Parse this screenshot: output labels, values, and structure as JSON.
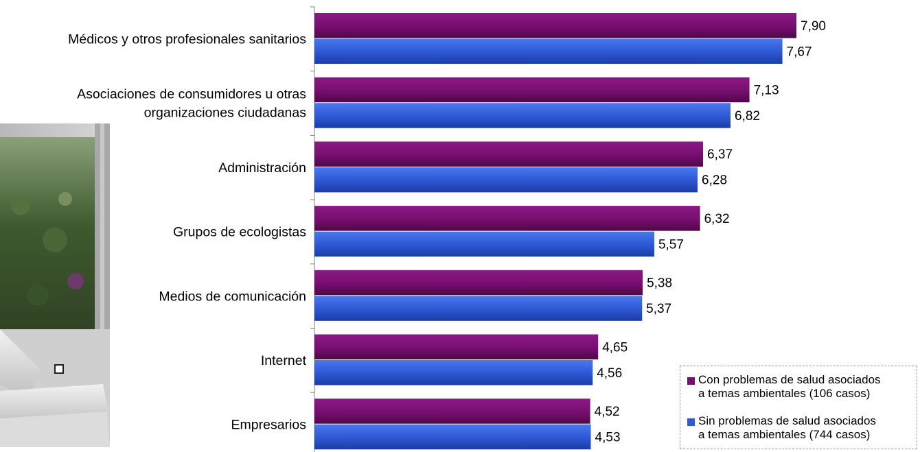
{
  "chart_data": {
    "type": "bar",
    "orientation": "horizontal",
    "categories": [
      "Médicos y otros profesionales sanitarios",
      "Asociaciones de consumidores u otras organizaciones ciudadanas",
      "Administración",
      "Grupos de ecologistas",
      "Medios de comunicación",
      "Internet",
      "Empresarios"
    ],
    "category_lines": [
      [
        "Médicos y otros profesionales sanitarios"
      ],
      [
        "Asociaciones de consumidores u otras",
        "organizaciones ciudadanas"
      ],
      [
        "Administración"
      ],
      [
        "Grupos de ecologistas"
      ],
      [
        "Medios de comunicación"
      ],
      [
        "Internet"
      ],
      [
        "Empresarios"
      ]
    ],
    "series": [
      {
        "name": "Con problemas de salud asociados a temas ambientales (106 casos)",
        "name_lines": [
          "Con problemas de salud asociados",
          "a temas ambientales (106 casos)"
        ],
        "color": "#7a0f72",
        "values": [
          7.9,
          7.13,
          6.37,
          6.32,
          5.38,
          4.65,
          4.52
        ],
        "labels": [
          "7,90",
          "7,13",
          "6,37",
          "6,32",
          "5,38",
          "4,65",
          "4,52"
        ]
      },
      {
        "name": "Sin problemas de salud asociados a temas ambientales (744 casos)",
        "name_lines": [
          "Sin problemas de salud asociados",
          "a temas ambientales (744 casos)"
        ],
        "color": "#2f5ad6",
        "values": [
          7.67,
          6.82,
          6.28,
          5.57,
          5.37,
          4.56,
          4.53
        ],
        "labels": [
          "7,67",
          "6,82",
          "6,28",
          "5,57",
          "5,37",
          "4,56",
          "4,53"
        ]
      }
    ],
    "xlim": [
      0,
      10
    ],
    "grid": false,
    "legend_position": "bottom-right"
  }
}
